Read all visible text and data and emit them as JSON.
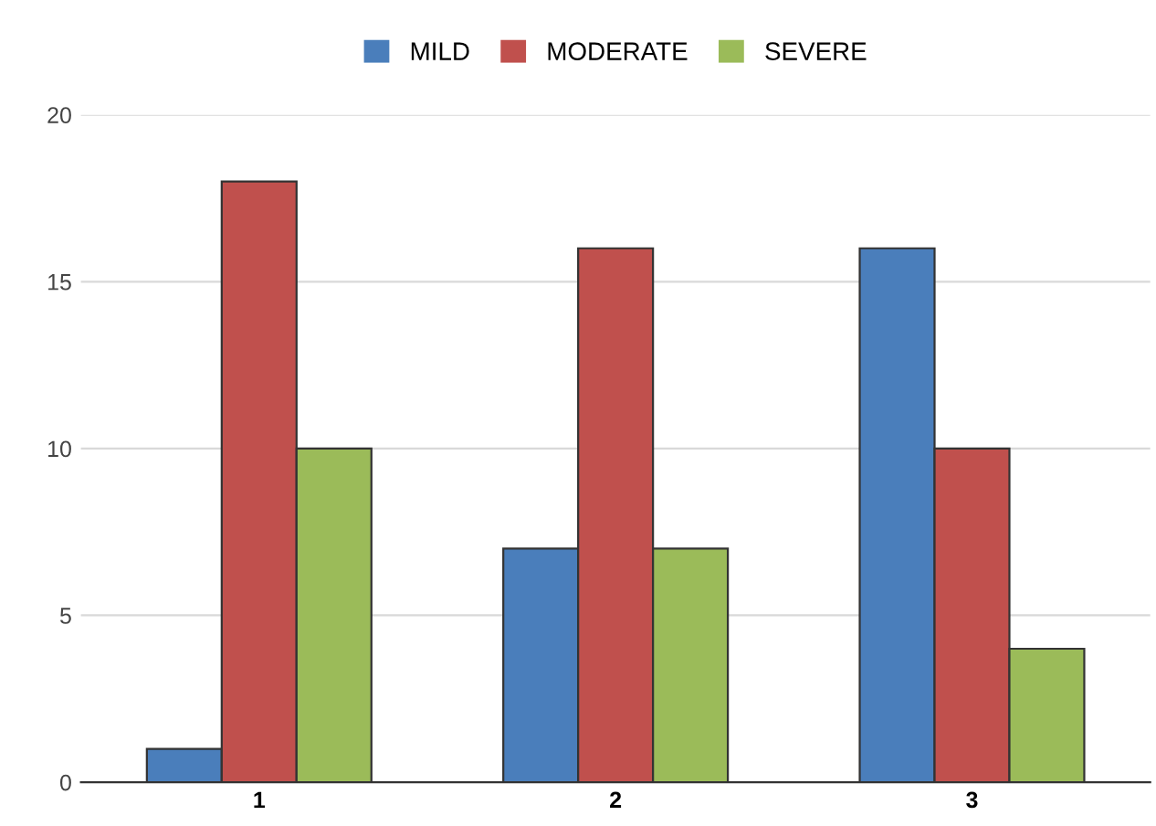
{
  "chart_data": {
    "type": "bar",
    "categories": [
      "1",
      "2",
      "3"
    ],
    "series": [
      {
        "name": "MILD",
        "color": "#4a7ebb",
        "values": [
          1,
          7,
          16
        ]
      },
      {
        "name": "MODERATE",
        "color": "#c0504d",
        "values": [
          18,
          16,
          10
        ]
      },
      {
        "name": "SEVERE",
        "color": "#9bbb59",
        "values": [
          10,
          7,
          4
        ]
      }
    ],
    "ylim": [
      0,
      20
    ],
    "yticks": [
      0,
      5,
      10,
      15,
      20
    ],
    "grid": "y",
    "legend": "top"
  }
}
